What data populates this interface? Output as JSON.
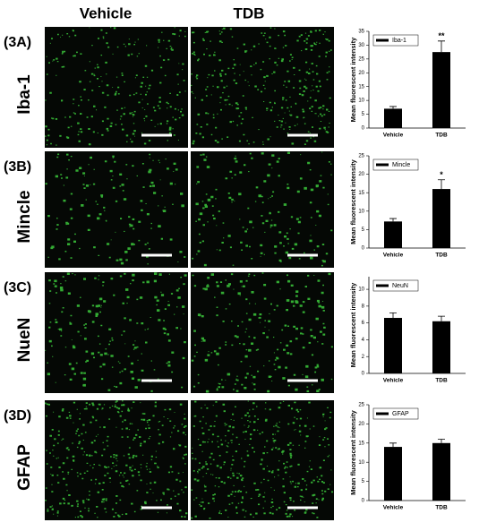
{
  "panel_headers": [
    "Vehicle",
    "TDB"
  ],
  "panels": [
    {
      "tag": "(3A)",
      "marker": "Iba-1"
    },
    {
      "tag": "(3B)",
      "marker": "Mincle"
    },
    {
      "tag": "(3C)",
      "marker": "NueN"
    },
    {
      "tag": "(3D)",
      "marker": "GFAP"
    }
  ],
  "chart_data": [
    {
      "type": "bar",
      "ylabel": "Mean fluorescent intensity",
      "categories": [
        "Vehicle",
        "TDB"
      ],
      "series": [
        {
          "name": "Iba-1",
          "color": "#000000",
          "values": [
            7,
            27.5
          ],
          "errors": [
            0.8,
            4
          ]
        }
      ],
      "significance": [
        null,
        "**"
      ],
      "ylim": [
        0,
        35
      ],
      "yticks": [
        0,
        5,
        10,
        15,
        20,
        25,
        30,
        35
      ],
      "legend": "upper left"
    },
    {
      "type": "bar",
      "ylabel": "Mean fluorescent intensity",
      "categories": [
        "Vehicle",
        "TDB"
      ],
      "series": [
        {
          "name": "Mincle",
          "color": "#000000",
          "values": [
            7.2,
            16
          ],
          "errors": [
            0.8,
            2.5
          ]
        }
      ],
      "significance": [
        null,
        "*"
      ],
      "ylim": [
        0,
        25
      ],
      "yticks": [
        0,
        5,
        10,
        15,
        20,
        25
      ],
      "legend": "upper left"
    },
    {
      "type": "bar",
      "ylabel": "Mean fluorescent intensity",
      "categories": [
        "Vehicle",
        "TDB"
      ],
      "series": [
        {
          "name": "NeuN",
          "color": "#000000",
          "values": [
            6.6,
            6.2
          ],
          "errors": [
            0.6,
            0.6
          ]
        }
      ],
      "ylim": [
        0,
        11.5
      ],
      "yticks": [
        0,
        2,
        4,
        6,
        8,
        10
      ],
      "legend": "upper left"
    },
    {
      "type": "bar",
      "ylabel": "Mean fluorescent intensity",
      "categories": [
        "Vehicle",
        "TDB"
      ],
      "series": [
        {
          "name": "GFAP",
          "color": "#000000",
          "values": [
            14,
            15
          ],
          "errors": [
            1,
            1
          ]
        }
      ],
      "ylim": [
        0,
        25
      ],
      "yticks": [
        0,
        5,
        10,
        15,
        20,
        25
      ],
      "legend": "upper left"
    }
  ]
}
